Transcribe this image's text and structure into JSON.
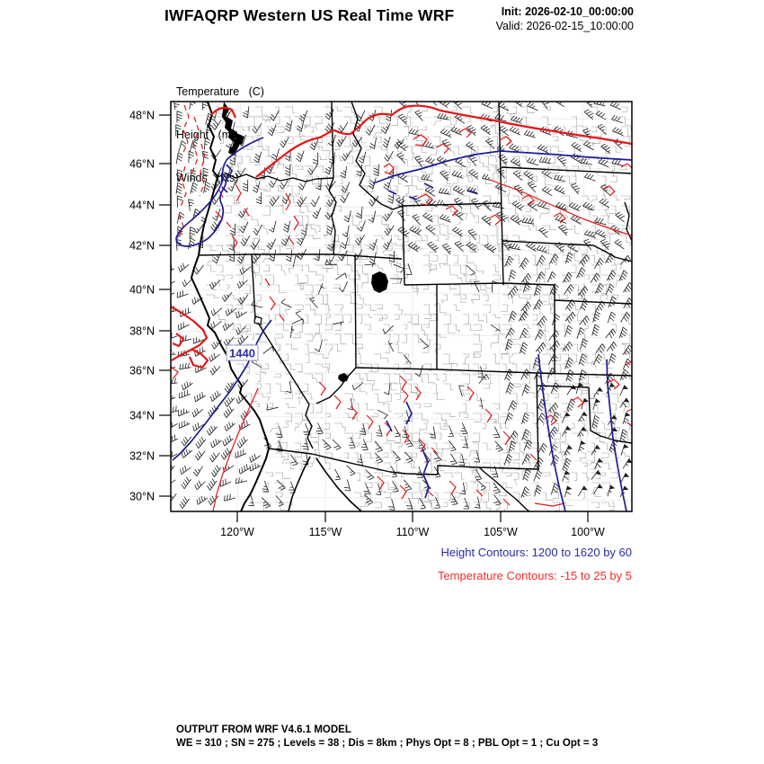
{
  "header": {
    "title": "IWFAQRP Western US Real Time WRF",
    "init": "Init: 2026-02-10_00:00:00",
    "valid": "Valid: 2026-02-15_10:00:00"
  },
  "units_legend": {
    "temperature": "Temperature   (C)",
    "height": "Height   (m)",
    "winds": "Winds   (kts)"
  },
  "map": {
    "lat_ticks": [
      "48°N",
      "46°N",
      "44°N",
      "42°N",
      "40°N",
      "38°N",
      "36°N",
      "34°N",
      "32°N",
      "30°N"
    ],
    "lon_ticks": [
      "120°W",
      "115°W",
      "110°W",
      "105°W",
      "100°W"
    ],
    "height_contour_label": "1440"
  },
  "contour_info": {
    "height": "Height Contours: 1200 to 1620 by 60",
    "temperature": "Temperature Contours: -15 to 25 by 5"
  },
  "footer": {
    "line1": "OUTPUT FROM WRF V4.6.1 MODEL",
    "line2": "WE = 310 ; SN = 275 ; Levels = 38 ; Dis = 8km ; Phys Opt = 8 ; PBL Opt = 1 ; Cu Opt = 3"
  },
  "colors": {
    "temperature_contour": "#e61616",
    "height_contour": "#1c1c96",
    "state_border": "#000000",
    "county_line": "#999999",
    "wind_barb": "#1d1d1d"
  }
}
